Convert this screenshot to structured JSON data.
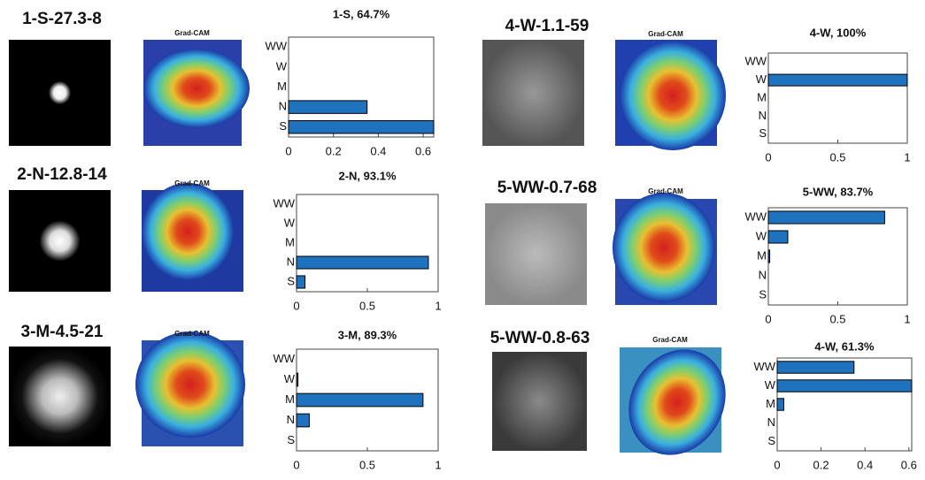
{
  "chart_data": [
    {
      "type": "barh",
      "title": "1-S, 64.7%",
      "categories": [
        "S",
        "N",
        "M",
        "W",
        "WW"
      ],
      "values": [
        0.647,
        0.35,
        0,
        0,
        0
      ],
      "color": "#1f72be",
      "xlim": [
        0,
        0.647
      ],
      "xticks": [
        0,
        0.2,
        0.4,
        0.6
      ]
    },
    {
      "type": "barh",
      "title": "2-N, 93.1%",
      "categories": [
        "S",
        "N",
        "M",
        "W",
        "WW"
      ],
      "values": [
        0.06,
        0.931,
        0,
        0,
        0
      ],
      "color": "#1f72be",
      "xlim": [
        0,
        1
      ],
      "xticks": [
        0,
        0.5,
        1
      ]
    },
    {
      "type": "barh",
      "title": "3-M, 89.3%",
      "categories": [
        "S",
        "N",
        "M",
        "W",
        "WW"
      ],
      "values": [
        0,
        0.09,
        0.893,
        0.01,
        0
      ],
      "color": "#1f72be",
      "xlim": [
        0,
        1
      ],
      "xticks": [
        0,
        0.5,
        1
      ]
    },
    {
      "type": "barh",
      "title": "4-W, 100%",
      "categories": [
        "S",
        "N",
        "M",
        "W",
        "WW"
      ],
      "values": [
        0,
        0,
        0,
        1,
        0
      ],
      "color": "#1f72be",
      "xlim": [
        0,
        1
      ],
      "xticks": [
        0,
        0.5,
        1
      ]
    },
    {
      "type": "barh",
      "title": "5-WW, 83.7%",
      "categories": [
        "S",
        "N",
        "M",
        "W",
        "WW"
      ],
      "values": [
        0,
        0,
        0.01,
        0.14,
        0.837
      ],
      "color": "#1f72be",
      "xlim": [
        0,
        1
      ],
      "xticks": [
        0,
        0.5,
        1
      ]
    },
    {
      "type": "barh",
      "title": "4-W, 61.3%",
      "categories": [
        "S",
        "N",
        "M",
        "W",
        "WW"
      ],
      "values": [
        0,
        0,
        0.03,
        0.613,
        0.35
      ],
      "color": "#1f72be",
      "xlim": [
        0,
        0.613
      ],
      "xticks": [
        0,
        0.2,
        0.4,
        0.6
      ]
    }
  ],
  "panels": [
    {
      "label": "1-S-27.3-8",
      "gradcam_title": "Grad-CAM"
    },
    {
      "label": "2-N-12.8-14",
      "gradcam_title": "Grad-CAM"
    },
    {
      "label": "3-M-4.5-21",
      "gradcam_title": "Grad-CAM"
    },
    {
      "label": "4-W-1.1-59",
      "gradcam_title": "Grad-CAM"
    },
    {
      "label": "5-WW-0.7-68",
      "gradcam_title": "Grad-CAM"
    },
    {
      "label": "5-WW-0.8-63",
      "gradcam_title": "Grad-CAM"
    }
  ]
}
